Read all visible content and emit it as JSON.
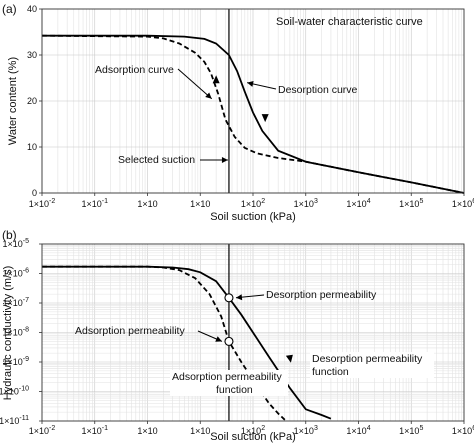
{
  "chart_data": [
    {
      "panel": "(a)",
      "type": "line",
      "title": "Soil-water characteristic curve",
      "xlabel": "Soil suction (kPa)",
      "ylabel": "Water content (%)",
      "xscale": "log",
      "xlim": [
        0.01,
        1000000
      ],
      "ylim": [
        0,
        40
      ],
      "xticks": [
        0.01,
        0.1,
        1,
        10,
        100,
        1000,
        10000,
        100000,
        1000000
      ],
      "xtick_labels": [
        "1×10⁻²",
        "1×10⁻¹",
        "1×10",
        "1×10",
        "1×10²",
        "1×10³",
        "1×10⁴",
        "1×10⁵",
        "1×10⁶"
      ],
      "yticks": [
        0,
        10,
        20,
        30,
        40
      ],
      "grid": true,
      "series": [
        {
          "name": "Desorption curve",
          "style": "solid",
          "x": [
            0.01,
            1,
            5,
            12,
            20,
            35,
            50,
            70,
            100,
            150,
            300,
            1000,
            10000,
            100000,
            1000000
          ],
          "y": [
            34.2,
            34.2,
            34.0,
            33.5,
            32.5,
            30,
            26.5,
            22,
            17.5,
            13.5,
            9.2,
            6.8,
            4.5,
            2.3,
            0
          ]
        },
        {
          "name": "Adsorption curve",
          "style": "dashed",
          "x": [
            0.01,
            1,
            2,
            4,
            8,
            12,
            16,
            22,
            30,
            45,
            70,
            120,
            300,
            1000,
            10000,
            100000,
            1000000
          ],
          "y": [
            34.2,
            34.0,
            33.6,
            32.5,
            30.5,
            28.5,
            26.0,
            21.5,
            16,
            12.2,
            9.8,
            8.6,
            7.6,
            6.8,
            4.5,
            2.3,
            0
          ]
        }
      ],
      "vertical_line": {
        "x": 35
      },
      "annotations": [
        {
          "text": "Adsorption curve",
          "target_x": 18,
          "target_y": 20.5
        },
        {
          "text": "Desorption curve",
          "target_x": 65,
          "target_y": 24
        },
        {
          "text": "Selected suction",
          "target_x": 35,
          "target_y": 8
        }
      ],
      "arrows_on_curves": [
        {
          "series": "Desorption curve",
          "x": 170,
          "y": 16.5,
          "direction": "down"
        },
        {
          "series": "Adsorption curve",
          "x": 20,
          "y": 24.5,
          "direction": "up"
        }
      ]
    },
    {
      "panel": "(b)",
      "type": "line",
      "xlabel": "Soil suction (kPa)",
      "ylabel": "Hydraulic conductivity (m/s)",
      "xscale": "log",
      "yscale": "log",
      "xlim": [
        0.01,
        1000000
      ],
      "ylim": [
        1e-11,
        1e-05
      ],
      "xticks": [
        0.01,
        0.1,
        1,
        10,
        100,
        1000,
        10000,
        100000,
        1000000
      ],
      "xtick_labels": [
        "1×10⁻²",
        "1×10⁻¹",
        "1×10",
        "1×10",
        "1×10²",
        "1×10³",
        "1×10⁴",
        "1×10⁵",
        "1×10⁶"
      ],
      "yticks": [
        1e-11,
        1e-10,
        1e-09,
        1e-08,
        1e-07,
        1e-06,
        1e-05
      ],
      "ytick_labels": [
        "1×10⁻¹¹",
        "1×10⁻¹⁰",
        "1×10⁻⁹",
        "1×10⁻⁸",
        "1×10⁻⁷",
        "1×10⁻⁶",
        "1×10⁻⁵"
      ],
      "grid": true,
      "series": [
        {
          "name": "Desorption permeability function",
          "style": "solid",
          "x": [
            0.01,
            1,
            3,
            6,
            10,
            20,
            35,
            60,
            100,
            200,
            500,
            1000,
            2000,
            3000
          ],
          "y": [
            1.7e-06,
            1.7e-06,
            1.6e-06,
            1.4e-06,
            1.1e-06,
            5.5e-07,
            1.5e-07,
            4e-08,
            1e-08,
            1.5e-09,
            1.3e-10,
            2.5e-11,
            1.6e-11,
            1.2e-11
          ]
        },
        {
          "name": "Adsorption permeability function",
          "style": "dashed",
          "x": [
            0.01,
            1,
            2,
            4,
            8,
            15,
            25,
            35,
            60,
            100,
            200,
            300,
            400
          ],
          "y": [
            1.7e-06,
            1.7e-06,
            1.6e-06,
            1.3e-06,
            7e-07,
            2e-07,
            3.5e-08,
            5e-09,
            1e-09,
            2.5e-10,
            4e-11,
            1.8e-11,
            1.1e-11
          ]
        }
      ],
      "vertical_line": {
        "x": 35
      },
      "markers": [
        {
          "label": "Desorption permeability",
          "x": 35,
          "y": 1.5e-07
        },
        {
          "label": "Adsorption permeability",
          "x": 35,
          "y": 5e-09
        }
      ],
      "arrows_on_curves": [
        {
          "series": "Desorption permeability function",
          "x": 500,
          "y": 1.4e-09,
          "direction": "down"
        }
      ],
      "annotations": [
        {
          "text": "Adsorption permeability",
          "target_x": 30,
          "target_y": 5e-09
        },
        {
          "text": "Desorption permeability",
          "target_x": 45,
          "target_y": 1.5e-07
        },
        {
          "text": "Adsorption permeability function"
        },
        {
          "text": "Desorption permeability function"
        }
      ]
    }
  ]
}
